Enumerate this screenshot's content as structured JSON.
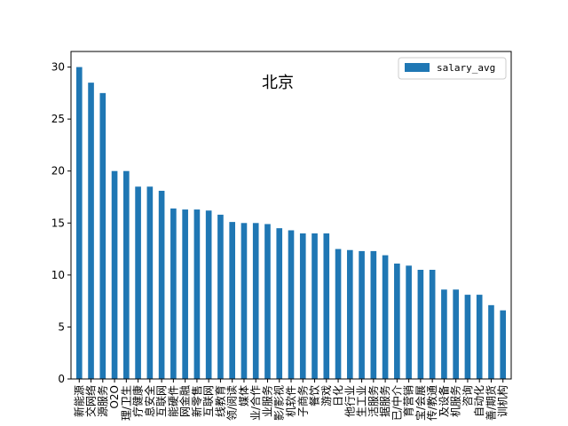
{
  "chart_data": {
    "type": "bar",
    "title": "北京",
    "legend_position": "upper-right",
    "grid": false,
    "ylim": [
      0,
      31.5
    ],
    "yticks": [
      0,
      5,
      10,
      15,
      20,
      25,
      30
    ],
    "bar_color": "#1f77b4",
    "series": [
      {
        "name": "salary_avg",
        "values": [
          30,
          28.5,
          27.5,
          20,
          20,
          18.5,
          18.5,
          18.1,
          16.4,
          16.3,
          16.3,
          16.2,
          15.8,
          15.1,
          15.0,
          15.0,
          14.9,
          14.5,
          14.3,
          14.0,
          14.0,
          14.0,
          12.5,
          12.4,
          12.3,
          12.3,
          11.9,
          11.1,
          10.9,
          10.5,
          10.5,
          8.6,
          8.6,
          8.1,
          8.1,
          7.1,
          6.6
        ]
      }
    ],
    "categories": [
      "新能源",
      "交网络",
      "源服务",
      "O2O",
      "理/卫生",
      "疗健康",
      "息安全",
      "互联网",
      "能硬件",
      "网金融",
      "新零售",
      "互联网",
      "线教育",
      "领/阅读",
      "媒体",
      "业/合作",
      "业服务",
      "影/影视",
      "机软件",
      "子商务",
      "餐饮",
      "游戏",
      "日化",
      "他行业",
      "生工业",
      "活服务",
      "据服务",
      "已/中介",
      "育营销",
      "宝/会展",
      "传/教通",
      "及设备",
      "机服务",
      "咨询",
      "自动化",
      "善/期货",
      "训机构"
    ]
  }
}
